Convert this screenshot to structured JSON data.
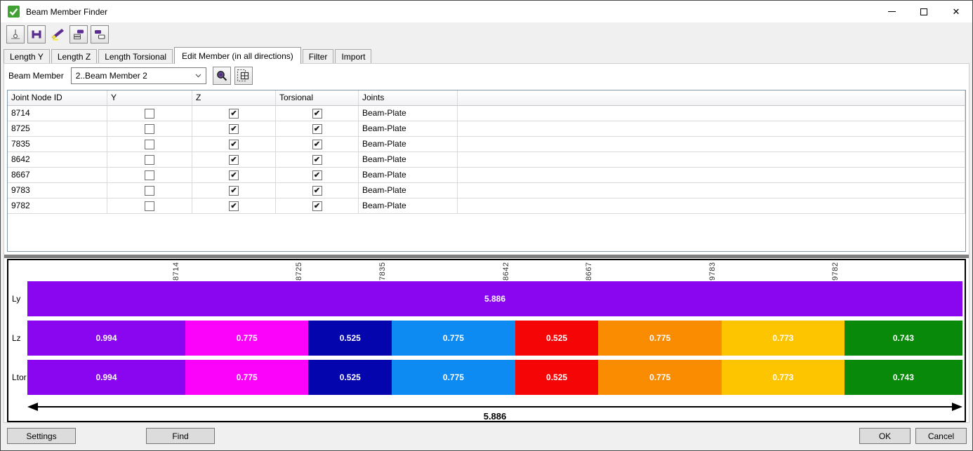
{
  "window": {
    "title": "Beam Member Finder"
  },
  "window_controls": {
    "minimize": "minimize",
    "maximize": "maximize",
    "close": "close"
  },
  "toolbar": {
    "buttons": [
      {
        "name": "joint-node-tool-icon"
      },
      {
        "name": "beam-section-tool-icon"
      },
      {
        "name": "highlight-brush-tool-icon"
      },
      {
        "name": "copy-stack-tool-icon"
      },
      {
        "name": "copy-member-tool-icon"
      }
    ]
  },
  "tabs": [
    {
      "label": "Length Y",
      "active": false
    },
    {
      "label": "Length Z",
      "active": false
    },
    {
      "label": "Length Torsional",
      "active": false
    },
    {
      "label": "Edit Member (in all directions)",
      "active": true
    },
    {
      "label": "Filter",
      "active": false
    },
    {
      "label": "Import",
      "active": false
    }
  ],
  "member_selector": {
    "label": "Beam Member",
    "selected": "2..Beam Member 2"
  },
  "table": {
    "columns": [
      "Joint Node ID",
      "Y",
      "Z",
      "Torsional",
      "Joints"
    ],
    "rows": [
      {
        "joint_node_id": "8714",
        "y": false,
        "z": true,
        "torsional": true,
        "joints": "Beam-Plate"
      },
      {
        "joint_node_id": "8725",
        "y": false,
        "z": true,
        "torsional": true,
        "joints": "Beam-Plate"
      },
      {
        "joint_node_id": "7835",
        "y": false,
        "z": true,
        "torsional": true,
        "joints": "Beam-Plate"
      },
      {
        "joint_node_id": "8642",
        "y": false,
        "z": true,
        "torsional": true,
        "joints": "Beam-Plate"
      },
      {
        "joint_node_id": "8667",
        "y": false,
        "z": true,
        "torsional": true,
        "joints": "Beam-Plate"
      },
      {
        "joint_node_id": "9783",
        "y": false,
        "z": true,
        "torsional": true,
        "joints": "Beam-Plate"
      },
      {
        "joint_node_id": "9782",
        "y": false,
        "z": true,
        "torsional": true,
        "joints": "Beam-Plate"
      }
    ]
  },
  "chart_data": {
    "type": "bar",
    "subtype": "horizontal-stacked-lengths",
    "boundary_labels": [
      "8714",
      "8725",
      "7835",
      "8642",
      "8667",
      "9783",
      "9782"
    ],
    "total": 5.886,
    "total_label": "5.886",
    "rows": [
      {
        "name": "Ly",
        "segments": [
          {
            "value": 5.886,
            "label": "5.886",
            "color": "#8A05F0"
          }
        ]
      },
      {
        "name": "Lz",
        "segments": [
          {
            "value": 0.994,
            "label": "0.994",
            "color": "#8A05F0"
          },
          {
            "value": 0.775,
            "label": "0.775",
            "color": "#FB02FB"
          },
          {
            "value": 0.525,
            "label": "0.525",
            "color": "#0505AD"
          },
          {
            "value": 0.775,
            "label": "0.775",
            "color": "#0E8BF2"
          },
          {
            "value": 0.525,
            "label": "0.525",
            "color": "#F50505"
          },
          {
            "value": 0.775,
            "label": "0.775",
            "color": "#F98C00"
          },
          {
            "value": 0.773,
            "label": "0.773",
            "color": "#FDC500"
          },
          {
            "value": 0.743,
            "label": "0.743",
            "color": "#098909"
          }
        ]
      },
      {
        "name": "Ltor",
        "segments": [
          {
            "value": 0.994,
            "label": "0.994",
            "color": "#8A05F0"
          },
          {
            "value": 0.775,
            "label": "0.775",
            "color": "#FB02FB"
          },
          {
            "value": 0.525,
            "label": "0.525",
            "color": "#0505AD"
          },
          {
            "value": 0.775,
            "label": "0.775",
            "color": "#0E8BF2"
          },
          {
            "value": 0.525,
            "label": "0.525",
            "color": "#F50505"
          },
          {
            "value": 0.775,
            "label": "0.775",
            "color": "#F98C00"
          },
          {
            "value": 0.773,
            "label": "0.773",
            "color": "#FDC500"
          },
          {
            "value": 0.743,
            "label": "0.743",
            "color": "#098909"
          }
        ]
      }
    ]
  },
  "footer": {
    "settings_label": "Settings",
    "find_label": "Find",
    "ok_label": "OK",
    "cancel_label": "Cancel"
  },
  "colors": {
    "app_icon_green": "#3FA232",
    "tool_icon_purple": "#5C2D91",
    "grid_border": "#8298AB"
  }
}
